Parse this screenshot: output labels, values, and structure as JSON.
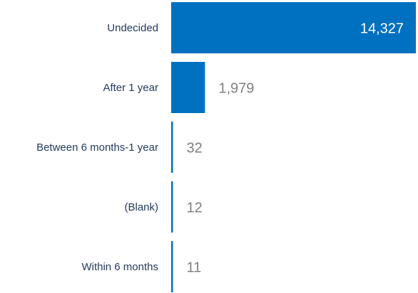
{
  "chart_data": {
    "type": "bar",
    "orientation": "horizontal",
    "categories": [
      "Undecided",
      "After 1 year",
      "Between 6 months-1 year",
      "(Blank)",
      "Within 6 months"
    ],
    "values": [
      14327,
      1979,
      32,
      12,
      11
    ],
    "value_labels": [
      "14,327",
      "1,979",
      "32",
      "12",
      "11"
    ],
    "color": "#0070c0"
  }
}
